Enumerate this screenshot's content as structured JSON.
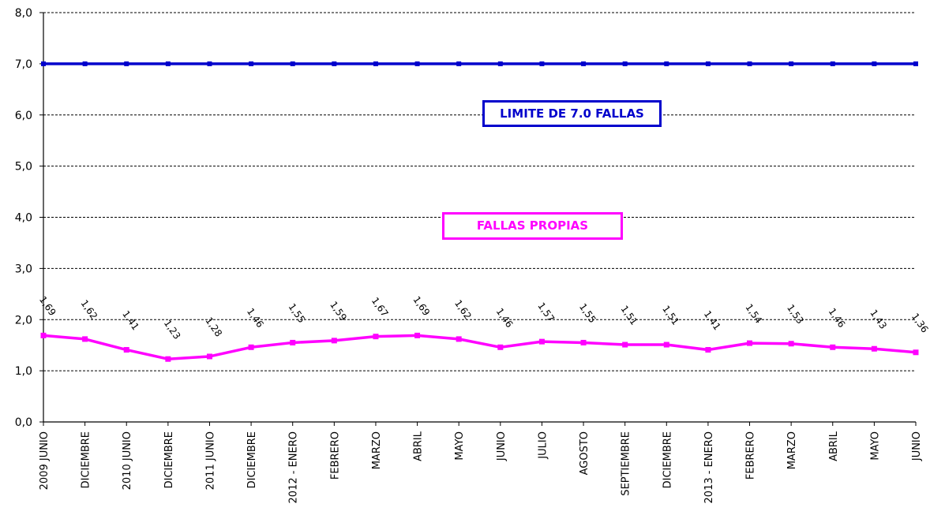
{
  "chart_data": {
    "type": "line",
    "title": "",
    "xlabel": "",
    "ylabel": "",
    "ylim": [
      0,
      8
    ],
    "y_ticks": [
      "0,0",
      "1,0",
      "2,0",
      "3,0",
      "4,0",
      "5,0",
      "6,0",
      "7,0",
      "8,0"
    ],
    "grid": "horizontal dashed",
    "categories": [
      "2009 JUNIO",
      "DICIEMBRE",
      "2010 JUNIO",
      "DICIEMBRE",
      "2011 JUNIO",
      "DICIEMBRE",
      "2012 - ENERO",
      "FEBRERO",
      "MARZO",
      "ABRIL",
      "MAYO",
      "JUNIO",
      "JULIO",
      "AGOSTO",
      "SEPTIEMBRE",
      "DICIEMBRE",
      "2013 - ENERO",
      "FEBRERO",
      "MARZO",
      "ABRIL",
      "MAYO",
      "JUNIO"
    ],
    "series": [
      {
        "name": "LIMITE DE 7.0 FALLAS",
        "color": "#0000cc",
        "values": [
          7,
          7,
          7,
          7,
          7,
          7,
          7,
          7,
          7,
          7,
          7,
          7,
          7,
          7,
          7,
          7,
          7,
          7,
          7,
          7,
          7,
          7
        ]
      },
      {
        "name": "FALLAS PROPIAS",
        "color": "#ff00ff",
        "values": [
          1.69,
          1.62,
          1.41,
          1.23,
          1.28,
          1.46,
          1.55,
          1.59,
          1.67,
          1.69,
          1.62,
          1.46,
          1.57,
          1.55,
          1.51,
          1.51,
          1.41,
          1.54,
          1.53,
          1.46,
          1.43,
          1.36
        ],
        "data_labels": [
          "1,69",
          "1,62",
          "1,41",
          "1,23",
          "1,28",
          "1,46",
          "1,55",
          "1,59",
          "1,67",
          "1,69",
          "1,62",
          "1,46",
          "1,57",
          "1,55",
          "1,51",
          "1,51",
          "1,41",
          "1,54",
          "1,53",
          "1,46",
          "1,43",
          "1,36"
        ]
      }
    ]
  },
  "legend": {
    "limit_label": "LIMITE DE 7.0 FALLAS",
    "propias_label": "FALLAS PROPIAS"
  }
}
